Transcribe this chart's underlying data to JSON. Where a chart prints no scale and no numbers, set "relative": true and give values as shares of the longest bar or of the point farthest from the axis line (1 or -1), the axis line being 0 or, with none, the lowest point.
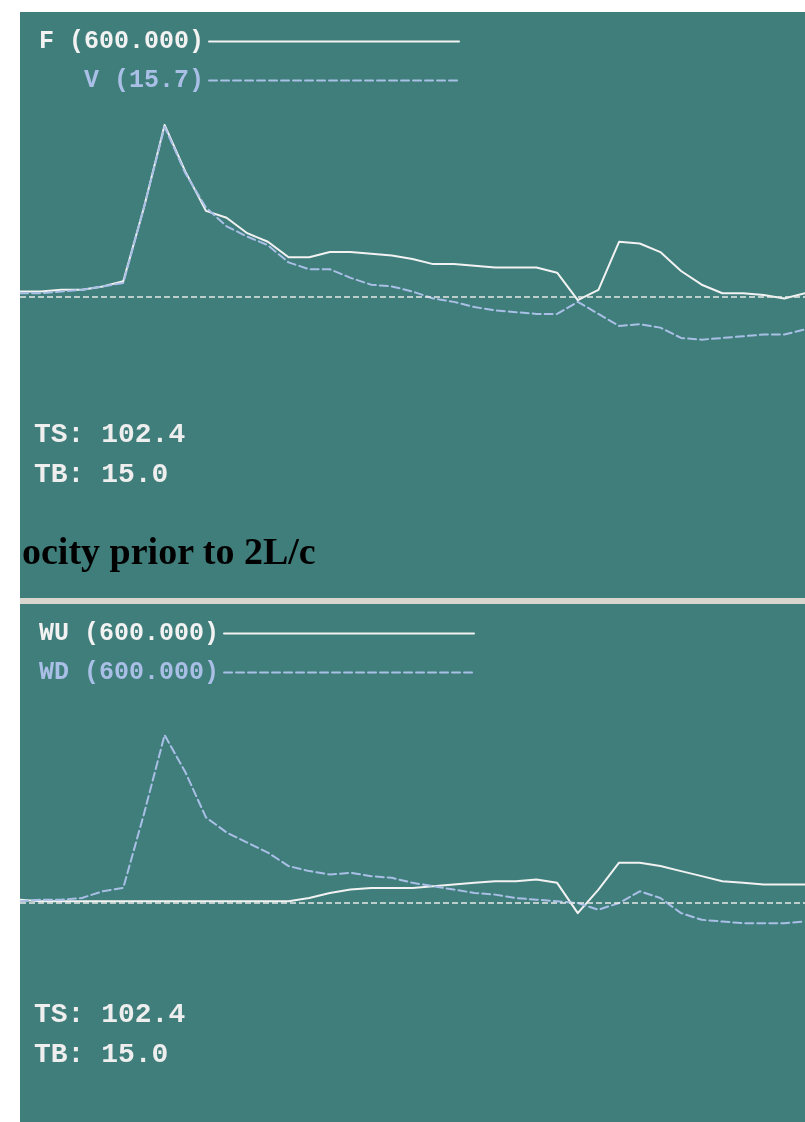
{
  "chart_data": [
    {
      "type": "line",
      "relative": true,
      "categories": [
        null,
        null,
        null,
        null,
        null,
        null,
        null,
        null,
        null,
        null,
        null,
        null,
        null,
        null,
        null,
        null,
        null,
        null,
        null,
        null,
        null,
        null,
        null,
        null,
        null,
        null,
        null,
        null,
        null,
        null,
        null,
        null,
        null,
        null,
        null,
        null,
        null,
        null,
        null
      ],
      "series": [
        {
          "name": "F (600.000)",
          "color": "#f2f2f2",
          "line_style": "solid",
          "values": [
            0.03,
            0.03,
            0.04,
            0.04,
            0.06,
            0.09,
            0.52,
            1,
            0.73,
            0.5,
            0.46,
            0.37,
            0.32,
            0.23,
            0.23,
            0.26,
            0.26,
            0.25,
            0.24,
            0.22,
            0.19,
            0.19,
            0.18,
            0.17,
            0.17,
            0.17,
            0.14,
            -0.02,
            0.04,
            0.32,
            0.31,
            0.26,
            0.15,
            0.07,
            0.02,
            0.02,
            0.01,
            -0.01,
            0.02
          ]
        },
        {
          "name": "V (15.7)",
          "color": "#a9bfe6",
          "line_style": "dashed",
          "values": [
            0.02,
            0.02,
            0.03,
            0.04,
            0.06,
            0.08,
            0.52,
            0.99,
            0.72,
            0.52,
            0.41,
            0.35,
            0.3,
            0.2,
            0.16,
            0.16,
            0.11,
            0.07,
            0.06,
            0.03,
            -0.01,
            -0.03,
            -0.06,
            -0.08,
            -0.09,
            -0.1,
            -0.1,
            -0.03,
            -0.1,
            -0.17,
            -0.16,
            -0.18,
            -0.24,
            -0.25,
            -0.24,
            -0.23,
            -0.22,
            -0.22,
            -0.19
          ]
        }
      ],
      "ref_lines": [
        {
          "axis": "y",
          "value": 0,
          "line_style": "dashed",
          "color": "#e8e8e8"
        }
      ],
      "annotations": [
        "TS: 102.4",
        "TB: 15.0",
        "ocity prior to 2L/c"
      ],
      "legend": "top left",
      "grid": false,
      "marker": "none"
    },
    {
      "type": "line",
      "relative": true,
      "categories": [
        null,
        null,
        null,
        null,
        null,
        null,
        null,
        null,
        null,
        null,
        null,
        null,
        null,
        null,
        null,
        null,
        null,
        null,
        null,
        null,
        null,
        null,
        null,
        null,
        null,
        null,
        null,
        null,
        null,
        null,
        null,
        null,
        null,
        null,
        null,
        null,
        null,
        null,
        null
      ],
      "series": [
        {
          "name": "WU (600.000)",
          "color": "#f2f2f2",
          "line_style": "solid",
          "values": [
            0.02,
            0.01,
            0.01,
            0.01,
            0.01,
            0.01,
            0.01,
            0.01,
            0.01,
            0.01,
            0.01,
            0.01,
            0.01,
            0.01,
            0.03,
            0.06,
            0.08,
            0.09,
            0.09,
            0.09,
            0.1,
            0.11,
            0.12,
            0.13,
            0.13,
            0.14,
            0.12,
            -0.06,
            0.08,
            0.24,
            0.24,
            0.22,
            0.19,
            0.16,
            0.13,
            0.12,
            0.11,
            0.11,
            0.11
          ]
        },
        {
          "name": "WD (600.000)",
          "color": "#a9bfe6",
          "line_style": "dashed",
          "values": [
            0.01,
            0.02,
            0.02,
            0.03,
            0.07,
            0.09,
            0.53,
            1,
            0.78,
            0.51,
            0.42,
            0.36,
            0.3,
            0.22,
            0.19,
            0.17,
            0.18,
            0.16,
            0.15,
            0.12,
            0.1,
            0.08,
            0.06,
            0.05,
            0.03,
            0.02,
            0.01,
            0,
            -0.04,
            0,
            0.07,
            0.03,
            -0.06,
            -0.1,
            -0.11,
            -0.12,
            -0.12,
            -0.12,
            -0.11
          ]
        }
      ],
      "ref_lines": [
        {
          "axis": "y",
          "value": 0,
          "line_style": "dashed",
          "color": "#e8e8e8"
        }
      ],
      "annotations": [
        "TS: 102.4",
        "TB: 15.0"
      ],
      "legend": "top left",
      "grid": false,
      "marker": "none"
    }
  ]
}
